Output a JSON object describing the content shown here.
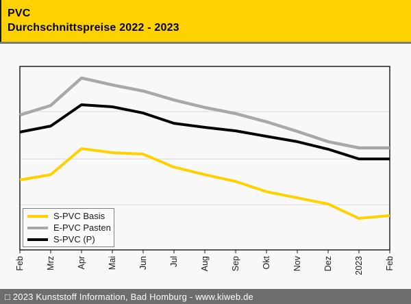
{
  "header": {
    "title": "PVC",
    "subtitle": "Durchschnittspreise 2022 - 2023",
    "bg_color": "#FFD100"
  },
  "footer": {
    "text": "□ 2023 Kunststoff Information, Bad Homburg - www.kiweb.de",
    "bg_color": "#6E6E6E"
  },
  "chart_data": {
    "type": "line",
    "title": "PVC Durchschnittspreise 2022 - 2023",
    "xlabel": "",
    "ylabel": "",
    "x_tick_labels": [
      "Feb",
      "Mrz",
      "Apr",
      "Mai",
      "Jun",
      "Jul",
      "Aug",
      "Sep",
      "Okt",
      "Nov",
      "Dez",
      "2023",
      "Feb"
    ],
    "y_axis": {
      "labels_visible": false,
      "note": "y-axis has no tick labels; values estimated as relative price level, 0 = plot bottom, 100 = plot top",
      "ylim": [
        0,
        100
      ],
      "gridline_values": [
        24.6,
        49.6,
        75.4
      ]
    },
    "grid": "horizontal",
    "legend_position": "bottom-left-inside",
    "series": [
      {
        "name": "S-PVC Basis",
        "color": "#FFD100",
        "values": [
          38.1,
          41.0,
          55.2,
          53.0,
          52.2,
          45.1,
          41.0,
          37.3,
          31.7,
          28.4,
          25.0,
          17.2,
          18.7
        ]
      },
      {
        "name": "E-PVC Pasten",
        "color": "#A8A8A8",
        "values": [
          73.5,
          78.7,
          93.7,
          89.9,
          86.6,
          81.7,
          77.6,
          74.3,
          69.8,
          64.6,
          59.0,
          55.6,
          55.6
        ]
      },
      {
        "name": "S-PVC (P)",
        "color": "#000000",
        "values": [
          64.2,
          67.5,
          79.1,
          78.0,
          74.6,
          69.0,
          66.8,
          64.9,
          61.9,
          59.0,
          54.9,
          49.6,
          49.6
        ]
      }
    ]
  },
  "colors": {
    "page_bg": "#F8F8F8",
    "grid_line": "#DADADA",
    "plot_border": "#000000",
    "divider": "#7A7A7A",
    "axis_text": "#1A1A1A"
  }
}
